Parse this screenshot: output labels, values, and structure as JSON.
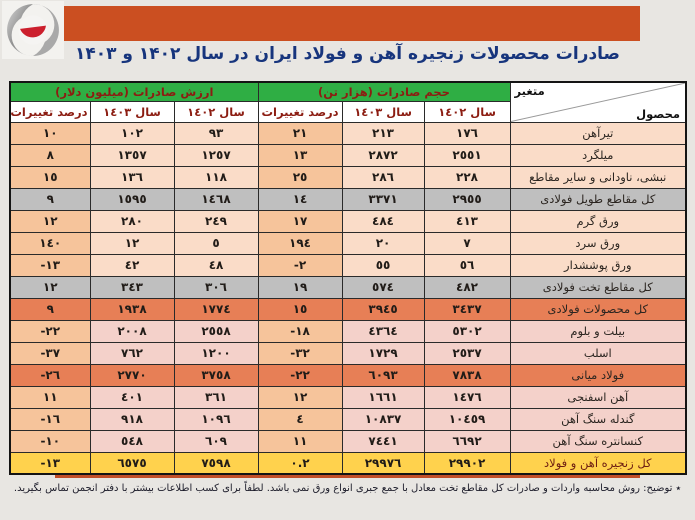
{
  "page": {
    "title": "صادرات محصولات زنجیره آهن و فولاد ایران در سال ۱۴۰۲ و ۱۴۰۳",
    "footnote": "٭ توضیح: روش محاسبه واردات و صادرات کل مقاطع تخت معادل با جمع جبری انواع ورق نمی باشد. لطفاً برای کسب اطلاعات بیشتر با دفتر انجمن تماس بگیرید.",
    "logo": "iran-steel-producers-association-logo"
  },
  "colors": {
    "banner": "#cb4f21",
    "title_text": "#17357d",
    "group_header_bg": "#2fae44",
    "header_text": "#8c1d12",
    "row_peach": "#fadcc8",
    "row_peach_pct": "#f6c49b",
    "row_pink": "#f4d1ca",
    "row_gray": "#bfbfbf",
    "row_orange": "#e77f56",
    "row_yellow": "#ffd24d",
    "divider": "#c24f28",
    "logo_red": "#cc1f2d"
  },
  "table": {
    "corner": {
      "top_label": "متغیر",
      "bottom_label": "محصول"
    },
    "groups": [
      {
        "label": "حجم صادرات (هزار تن)"
      },
      {
        "label": "ارزش صادرات (میلیون دلار)"
      }
    ],
    "subheaders": [
      "سال ١٤٠٢",
      "سال ١٤٠٣",
      "درصد تغییرات",
      "سال ١٤٠٢",
      "سال ١٤٠٣",
      "درصد تغییرات"
    ],
    "rows": [
      {
        "product": "تیرآهن",
        "style": "peach",
        "volume_1402": "١٧٦",
        "volume_1403": "٢١٣",
        "volume_change": "٢١",
        "value_1402": "٩٣",
        "value_1403": "١٠٢",
        "value_change": "١٠"
      },
      {
        "product": "میلگرد",
        "style": "peach",
        "volume_1402": "٢٥٥١",
        "volume_1403": "٢٨٧٢",
        "volume_change": "١٣",
        "value_1402": "١٢٥٧",
        "value_1403": "١٣٥٧",
        "value_change": "٨"
      },
      {
        "product": "نبشی، ناودانی و سایر مقاطع",
        "style": "peach",
        "volume_1402": "٢٢٨",
        "volume_1403": "٢٨٦",
        "volume_change": "٢٥",
        "value_1402": "١١٨",
        "value_1403": "١٣٦",
        "value_change": "١٥"
      },
      {
        "product": "کل مقاطع طویل فولادی",
        "style": "gray",
        "volume_1402": "٢٩٥٥",
        "volume_1403": "٣٣٧١",
        "volume_change": "١٤",
        "value_1402": "١٤٦٨",
        "value_1403": "١٥٩٥",
        "value_change": "٩"
      },
      {
        "product": "ورق گرم",
        "style": "peach",
        "volume_1402": "٤١٣",
        "volume_1403": "٤٨٤",
        "volume_change": "١٧",
        "value_1402": "٢٤٩",
        "value_1403": "٢٨٠",
        "value_change": "١٢"
      },
      {
        "product": "ورق سرد",
        "style": "peach",
        "volume_1402": "٧",
        "volume_1403": "٢٠",
        "volume_change": "١٩٤",
        "value_1402": "٥",
        "value_1403": "١٢",
        "value_change": "١٤٠"
      },
      {
        "product": "ورق پوششدار",
        "style": "peach",
        "volume_1402": "٥٦",
        "volume_1403": "٥٥",
        "volume_change": "-٢",
        "value_1402": "٤٨",
        "value_1403": "٤٢",
        "value_change": "-١٣"
      },
      {
        "product": "کل مقاطع تخت فولادی",
        "style": "gray",
        "volume_1402": "٤٨٢",
        "volume_1403": "٥٧٤",
        "volume_change": "١٩",
        "value_1402": "٣٠٦",
        "value_1403": "٣٤٣",
        "value_change": "١٢"
      },
      {
        "product": "کل محصولات فولادی",
        "style": "orange",
        "volume_1402": "٣٤٣٧",
        "volume_1403": "٣٩٤٥",
        "volume_change": "١٥",
        "value_1402": "١٧٧٤",
        "value_1403": "١٩٣٨",
        "value_change": "٩"
      },
      {
        "product": "بیلت و بلوم",
        "style": "pink",
        "volume_1402": "٥٣٠٢",
        "volume_1403": "٤٣٦٤",
        "volume_change": "-١٨",
        "value_1402": "٢٥٥٨",
        "value_1403": "٢٠٠٨",
        "value_change": "-٢٢"
      },
      {
        "product": "اسلب",
        "style": "pink",
        "volume_1402": "٢٥٣٧",
        "volume_1403": "١٧٢٩",
        "volume_change": "-٣٢",
        "value_1402": "١٢٠٠",
        "value_1403": "٧٦٢",
        "value_change": "-٣٧"
      },
      {
        "product": "فولاد میانی",
        "style": "orange",
        "volume_1402": "٧٨٣٨",
        "volume_1403": "٦٠٩٣",
        "volume_change": "-٢٢",
        "value_1402": "٣٧٥٨",
        "value_1403": "٢٧٧٠",
        "value_change": "-٢٦"
      },
      {
        "product": "آهن اسفنجی",
        "style": "pink",
        "volume_1402": "١٤٧٦",
        "volume_1403": "١٦٦١",
        "volume_change": "١٢",
        "value_1402": "٣٦١",
        "value_1403": "٤٠١",
        "value_change": "١١"
      },
      {
        "product": "گندله سنگ آهن",
        "style": "pink",
        "volume_1402": "١٠٤٥٩",
        "volume_1403": "١٠٨٣٧",
        "volume_change": "٤",
        "value_1402": "١٠٩٦",
        "value_1403": "٩١٨",
        "value_change": "-١٦"
      },
      {
        "product": "کنسانتره سنگ آهن",
        "style": "pink",
        "volume_1402": "٦٦٩٢",
        "volume_1403": "٧٤٤١",
        "volume_change": "١١",
        "value_1402": "٦٠٩",
        "value_1403": "٥٤٨",
        "value_change": "-١٠"
      },
      {
        "product": "کل زنجیره آهن و فولاد",
        "style": "yellow",
        "volume_1402": "٢٩٩٠٢",
        "volume_1403": "٢٩٩٧٦",
        "volume_change": "٠.٢",
        "value_1402": "٧٥٩٨",
        "value_1403": "٦٥٧٥",
        "value_change": "-١٣"
      }
    ]
  }
}
